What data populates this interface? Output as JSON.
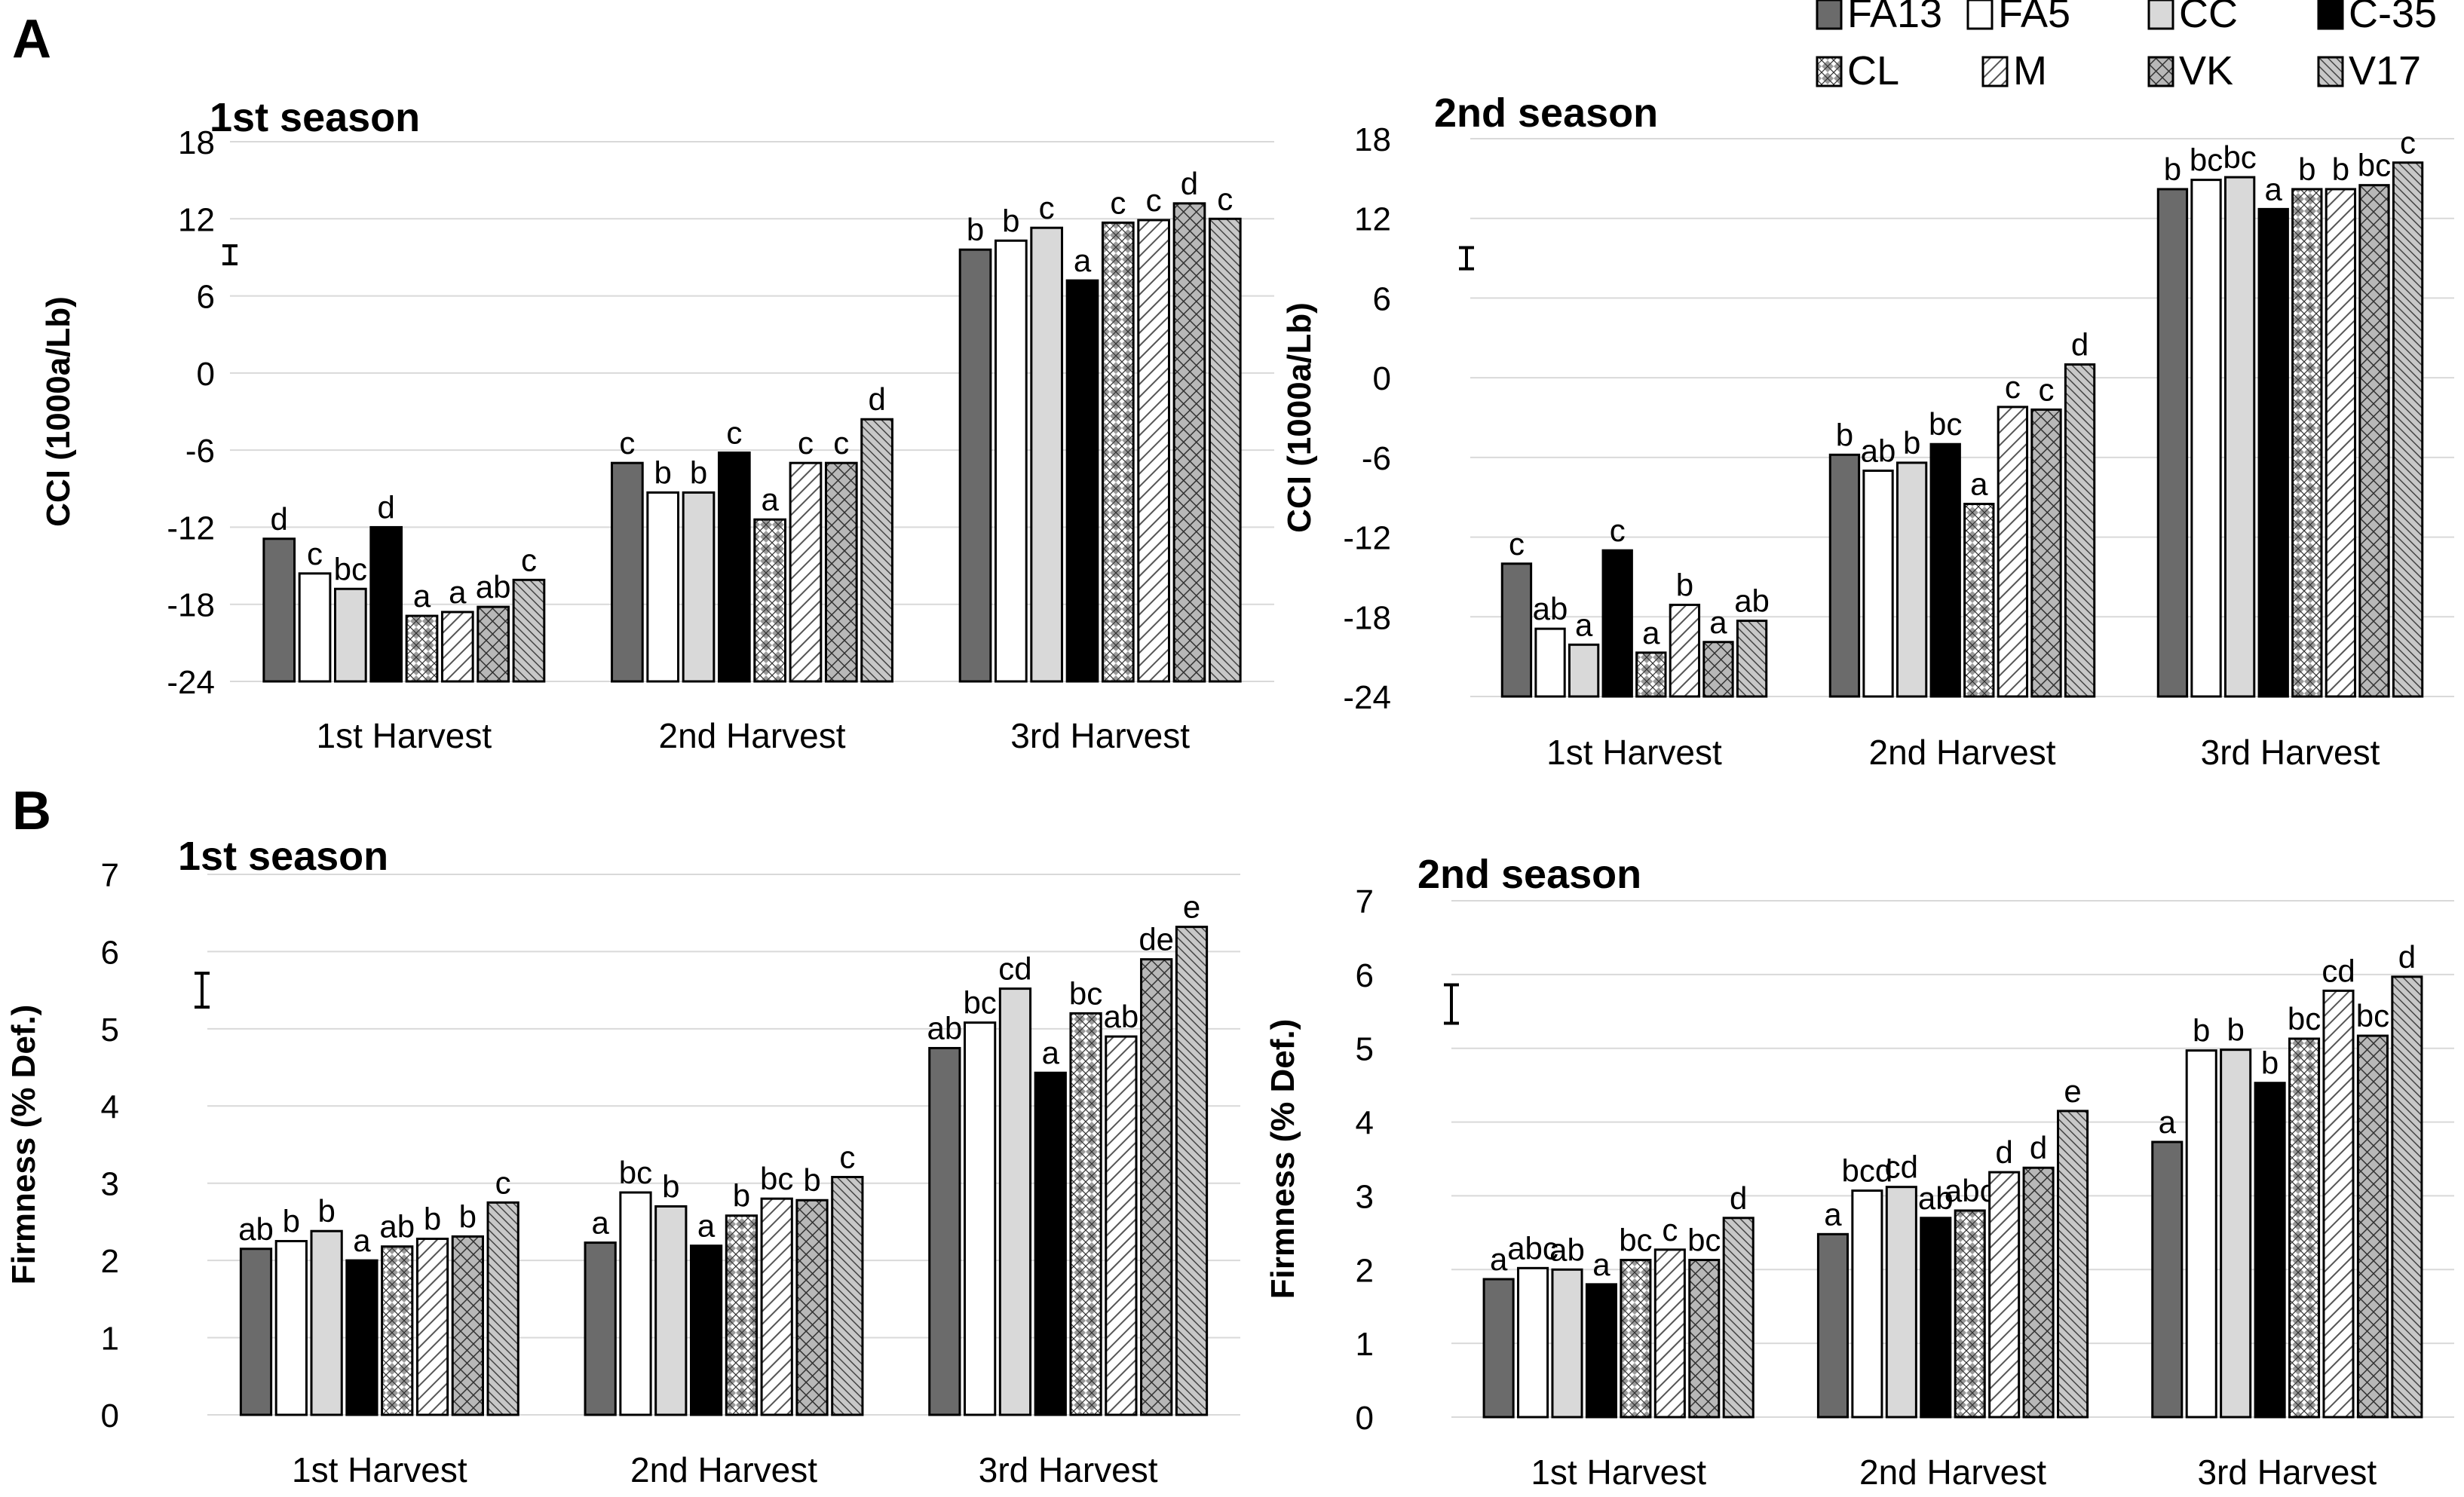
{
  "panel_labels": [
    "A",
    "B"
  ],
  "legend": [
    {
      "name": "FA13",
      "fill": "#6b6b6b",
      "pattern": "solid"
    },
    {
      "name": "FA5",
      "fill": "#ffffff",
      "pattern": "solid"
    },
    {
      "name": "CC",
      "fill": "#d9d9d9",
      "pattern": "solid"
    },
    {
      "name": "C-35",
      "fill": "#000000",
      "pattern": "solid"
    },
    {
      "name": "CL",
      "fill": "#ffffff",
      "pattern": "checker"
    },
    {
      "name": "M",
      "fill": "#ffffff",
      "pattern": "diag"
    },
    {
      "name": "VK",
      "fill": "#a6a6a6",
      "pattern": "crosshatch"
    },
    {
      "name": "V17",
      "fill": "#bfbfbf",
      "pattern": "diagdense"
    }
  ],
  "chart_data": [
    {
      "type": "bar",
      "panel": "A",
      "title": "1st season",
      "ylabel": "CCI (1000a/Lb)",
      "ylim": [
        -24,
        18
      ],
      "yticks": [
        -24,
        -18,
        -12,
        -6,
        0,
        6,
        12,
        18
      ],
      "categories": [
        "1st Harvest",
        "2nd Harvest",
        "3rd Harvest"
      ],
      "error_bar": {
        "value": 9.2,
        "half_range": 0.7
      },
      "series": [
        {
          "name": "FA13",
          "values": [
            -12.9,
            -7.0,
            9.6
          ],
          "letters": [
            "d",
            "c",
            "b"
          ]
        },
        {
          "name": "FA5",
          "values": [
            -15.6,
            -9.3,
            10.3
          ],
          "letters": [
            "c",
            "b",
            "b"
          ]
        },
        {
          "name": "CC",
          "values": [
            -16.8,
            -9.3,
            11.3
          ],
          "letters": [
            "bc",
            "b",
            "c"
          ]
        },
        {
          "name": "C-35",
          "values": [
            -12.0,
            -6.2,
            7.2
          ],
          "letters": [
            "d",
            "c",
            "a"
          ]
        },
        {
          "name": "CL",
          "values": [
            -18.9,
            -11.4,
            11.7
          ],
          "letters": [
            "a",
            "a",
            "c"
          ]
        },
        {
          "name": "M",
          "values": [
            -18.6,
            -7.0,
            11.9
          ],
          "letters": [
            "a",
            "c",
            "c"
          ]
        },
        {
          "name": "VK",
          "values": [
            -18.2,
            -7.0,
            13.2
          ],
          "letters": [
            "ab",
            "c",
            "d"
          ]
        },
        {
          "name": "V17",
          "values": [
            -16.1,
            -3.6,
            12.0
          ],
          "letters": [
            "c",
            "d",
            "c"
          ]
        }
      ]
    },
    {
      "type": "bar",
      "panel": "A",
      "title": "2nd season",
      "ylabel": "CCI (1000a/Lb)",
      "ylim": [
        -24,
        18
      ],
      "yticks": [
        -24,
        -18,
        -12,
        -6,
        0,
        6,
        12,
        18
      ],
      "categories": [
        "1st Harvest",
        "2nd Harvest",
        "3rd Harvest"
      ],
      "error_bar": {
        "value": 9.0,
        "half_range": 0.8
      },
      "series": [
        {
          "name": "FA13",
          "values": [
            -14.0,
            -5.8,
            14.2
          ],
          "letters": [
            "c",
            "b",
            "b"
          ]
        },
        {
          "name": "FA5",
          "values": [
            -18.9,
            -7.0,
            14.9
          ],
          "letters": [
            "ab",
            "ab",
            "bc"
          ]
        },
        {
          "name": "CC",
          "values": [
            -20.1,
            -6.4,
            15.1
          ],
          "letters": [
            "a",
            "b",
            "bc"
          ]
        },
        {
          "name": "C-35",
          "values": [
            -13.0,
            -5.0,
            12.7
          ],
          "letters": [
            "c",
            "bc",
            "a"
          ]
        },
        {
          "name": "CL",
          "values": [
            -20.7,
            -9.5,
            14.2
          ],
          "letters": [
            "a",
            "a",
            "b"
          ]
        },
        {
          "name": "M",
          "values": [
            -17.1,
            -2.2,
            14.2
          ],
          "letters": [
            "b",
            "c",
            "b"
          ]
        },
        {
          "name": "VK",
          "values": [
            -19.9,
            -2.4,
            14.5
          ],
          "letters": [
            "a",
            "c",
            "bc"
          ]
        },
        {
          "name": "V17",
          "values": [
            -18.3,
            1.0,
            16.2
          ],
          "letters": [
            "ab",
            "d",
            "c"
          ]
        }
      ]
    },
    {
      "type": "bar",
      "panel": "B",
      "title": "1st season",
      "ylabel": "Firmness (% Def.)",
      "ylim": [
        0,
        7
      ],
      "yticks": [
        0,
        1,
        2,
        3,
        4,
        5,
        6,
        7
      ],
      "categories": [
        "1st Harvest",
        "2nd Harvest",
        "3rd Harvest"
      ],
      "error_bar": {
        "value": 5.5,
        "half_range": 0.22
      },
      "series": [
        {
          "name": "FA13",
          "values": [
            2.15,
            2.23,
            4.75
          ],
          "letters": [
            "ab",
            "a",
            "ab"
          ]
        },
        {
          "name": "FA5",
          "values": [
            2.25,
            2.88,
            5.08
          ],
          "letters": [
            "b",
            "bc",
            "bc"
          ]
        },
        {
          "name": "CC",
          "values": [
            2.38,
            2.7,
            5.52
          ],
          "letters": [
            "b",
            "b",
            "cd"
          ]
        },
        {
          "name": "C-35",
          "values": [
            2.0,
            2.19,
            4.43
          ],
          "letters": [
            "a",
            "a",
            "a"
          ]
        },
        {
          "name": "CL",
          "values": [
            2.18,
            2.58,
            5.2
          ],
          "letters": [
            "ab",
            "b",
            "bc"
          ]
        },
        {
          "name": "M",
          "values": [
            2.28,
            2.8,
            4.9
          ],
          "letters": [
            "b",
            "bc",
            "ab"
          ]
        },
        {
          "name": "VK",
          "values": [
            2.31,
            2.78,
            5.9
          ],
          "letters": [
            "b",
            "b",
            "de"
          ]
        },
        {
          "name": "V17",
          "values": [
            2.75,
            3.08,
            6.32
          ],
          "letters": [
            "c",
            "c",
            "e"
          ]
        }
      ]
    },
    {
      "type": "bar",
      "panel": "B",
      "title": "2nd season",
      "ylabel": "Firmness (% Def.)",
      "ylim": [
        0,
        7
      ],
      "yticks": [
        0,
        1,
        2,
        3,
        4,
        5,
        6,
        7
      ],
      "categories": [
        "1st Harvest",
        "2nd Harvest",
        "3rd Harvest"
      ],
      "error_bar": {
        "value": 5.6,
        "half_range": 0.26
      },
      "series": [
        {
          "name": "FA13",
          "values": [
            1.87,
            2.48,
            3.73
          ],
          "letters": [
            "a",
            "a",
            "a"
          ]
        },
        {
          "name": "FA5",
          "values": [
            2.02,
            3.07,
            4.97
          ],
          "letters": [
            "abc",
            "bcd",
            "b"
          ]
        },
        {
          "name": "CC",
          "values": [
            2.0,
            3.12,
            4.98
          ],
          "letters": [
            "ab",
            "cd",
            "b"
          ]
        },
        {
          "name": "C-35",
          "values": [
            1.8,
            2.7,
            4.53
          ],
          "letters": [
            "a",
            "ab",
            "b"
          ]
        },
        {
          "name": "CL",
          "values": [
            2.13,
            2.8,
            5.13
          ],
          "letters": [
            "bc",
            "abc",
            "bc"
          ]
        },
        {
          "name": "M",
          "values": [
            2.27,
            3.32,
            5.78
          ],
          "letters": [
            "c",
            "d",
            "cd"
          ]
        },
        {
          "name": "VK",
          "values": [
            2.13,
            3.38,
            5.17
          ],
          "letters": [
            "bc",
            "d",
            "bc"
          ]
        },
        {
          "name": "V17",
          "values": [
            2.7,
            4.15,
            5.97
          ],
          "letters": [
            "d",
            "e",
            "d"
          ]
        }
      ]
    }
  ]
}
